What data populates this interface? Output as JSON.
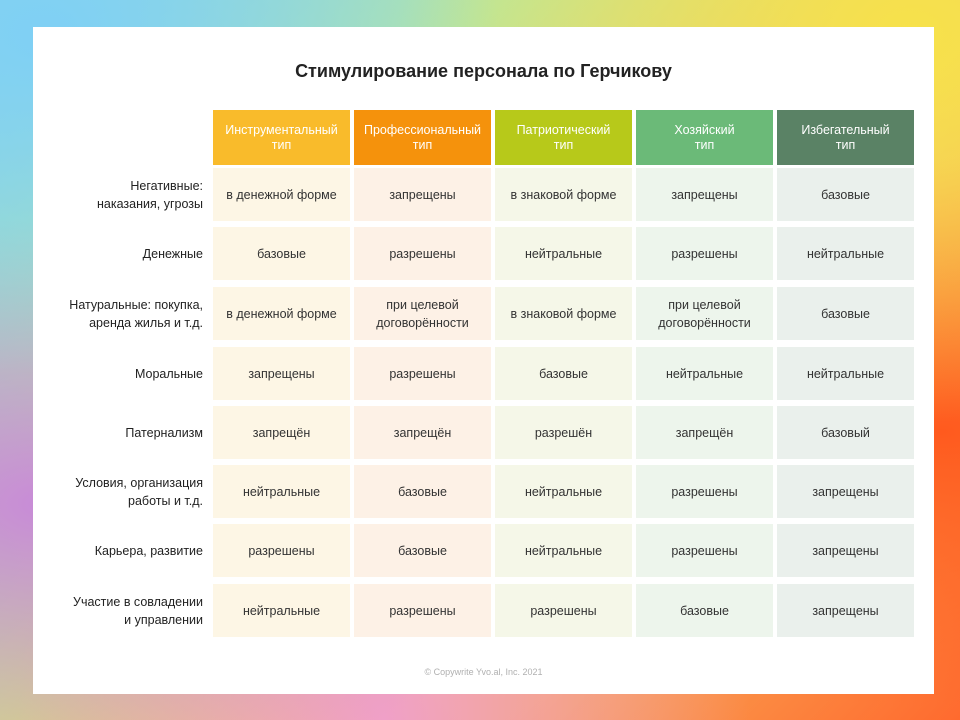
{
  "title": "Стимулирование персонала по Герчикову",
  "columns": [
    {
      "line1": "Инструментальный",
      "line2": "тип",
      "color": "#f9bb2b"
    },
    {
      "line1": "Профессиональный",
      "line2": "тип",
      "color": "#f5920c"
    },
    {
      "line1": "Патриотический",
      "line2": "тип",
      "color": "#b7c91a"
    },
    {
      "line1": "Хозяйский",
      "line2": "тип",
      "color": "#6bba78"
    },
    {
      "line1": "Избегательный",
      "line2": "тип",
      "color": "#5a8265"
    }
  ],
  "rows": [
    {
      "line1": "Негативные:",
      "line2": "наказания, угрозы",
      "cells": [
        [
          "в денежной форме"
        ],
        [
          "запрещены"
        ],
        [
          "в знаковой форме"
        ],
        [
          "запрещены"
        ],
        [
          "базовые"
        ]
      ]
    },
    {
      "line1": "Денежные",
      "line2": "",
      "cells": [
        [
          "базовые"
        ],
        [
          "разрешены"
        ],
        [
          "нейтральные"
        ],
        [
          "разрешены"
        ],
        [
          "нейтральные"
        ]
      ]
    },
    {
      "line1": "Натуральные: покупка,",
      "line2": "аренда жилья и т.д.",
      "cells": [
        [
          "в денежной форме"
        ],
        [
          "при целевой",
          "договорённости"
        ],
        [
          "в знаковой форме"
        ],
        [
          "при целевой",
          "договорённости"
        ],
        [
          "базовые"
        ]
      ]
    },
    {
      "line1": "Моральные",
      "line2": "",
      "cells": [
        [
          "запрещены"
        ],
        [
          "разрешены"
        ],
        [
          "базовые"
        ],
        [
          "нейтральные"
        ],
        [
          "нейтральные"
        ]
      ]
    },
    {
      "line1": "Патернализм",
      "line2": "",
      "cells": [
        [
          "запрещён"
        ],
        [
          "запрещён"
        ],
        [
          "разрешён"
        ],
        [
          "запрещён"
        ],
        [
          "базовый"
        ]
      ]
    },
    {
      "line1": "Условия, организация",
      "line2": "работы и т.д.",
      "cells": [
        [
          "нейтральные"
        ],
        [
          "базовые"
        ],
        [
          "нейтральные"
        ],
        [
          "разрешены"
        ],
        [
          "запрещены"
        ]
      ]
    },
    {
      "line1": "Карьера, развитие",
      "line2": "",
      "cells": [
        [
          "разрешены"
        ],
        [
          "базовые"
        ],
        [
          "нейтральные"
        ],
        [
          "разрешены"
        ],
        [
          "запрещены"
        ]
      ]
    },
    {
      "line1": "Участие в совладении",
      "line2": "и управлении",
      "cells": [
        [
          "нейтральные"
        ],
        [
          "разрешены"
        ],
        [
          "разрешены"
        ],
        [
          "базовые"
        ],
        [
          "запрещены"
        ]
      ]
    }
  ],
  "copyright": "© Copywrite Yvo.al, Inc. 2021"
}
